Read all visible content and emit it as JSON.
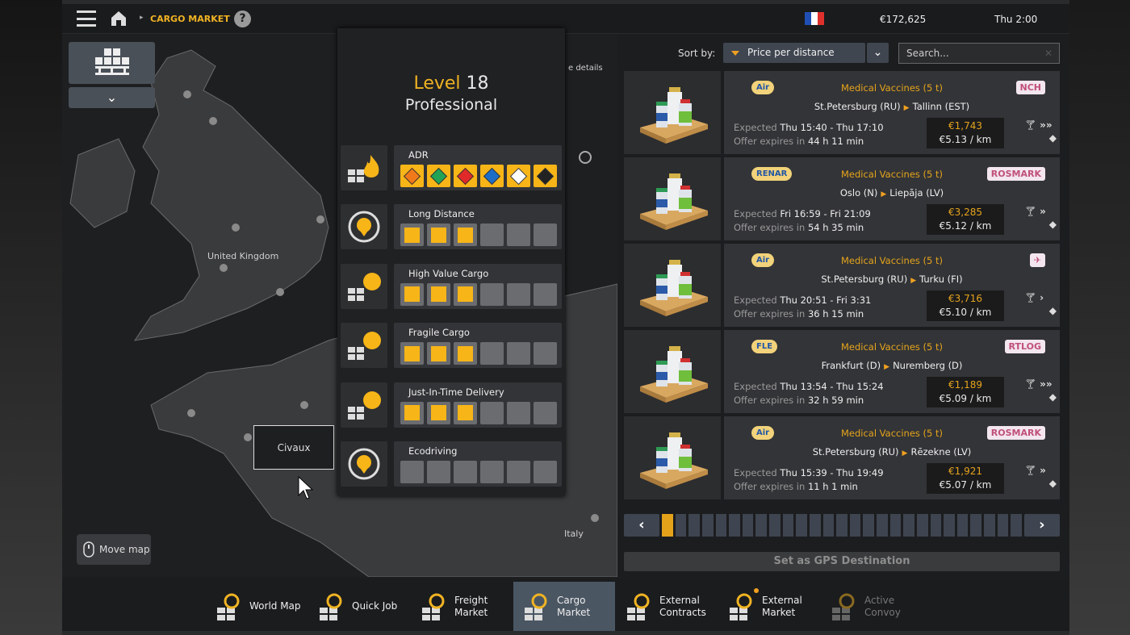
{
  "header": {
    "breadcrumb": "CARGO MARKET",
    "help": "?",
    "money": "€172,625",
    "time": "Thu 2:00",
    "country_flag": [
      "#1f4fb4",
      "#ffffff",
      "#e0302c"
    ]
  },
  "map": {
    "labels": {
      "uk": "United Kingdom",
      "italy": "Italy",
      "details": "e details"
    },
    "selected_city": "Civaux",
    "move_map": "Move map",
    "category_dropdown": "⌄"
  },
  "skills": {
    "level_word": "Level",
    "level": "18",
    "rank": "Professional",
    "adr": {
      "name": "ADR",
      "classes": [
        {
          "color": "#f07a1a"
        },
        {
          "color": "#22a356"
        },
        {
          "color": "#e02a2a"
        },
        {
          "color": "#1e6ec8"
        },
        {
          "color": "#ffffff"
        },
        {
          "color": "#222222"
        }
      ]
    },
    "items": [
      {
        "name": "Long Distance",
        "level": 3,
        "max": 6
      },
      {
        "name": "High Value Cargo",
        "level": 3,
        "max": 6
      },
      {
        "name": "Fragile Cargo",
        "level": 3,
        "max": 6
      },
      {
        "name": "Just-In-Time Delivery",
        "level": 3,
        "max": 6
      },
      {
        "name": "Ecodriving",
        "level": 0,
        "max": 6
      }
    ]
  },
  "sort": {
    "label": "Sort by:",
    "value": "Price per distance",
    "search_placeholder": "Search..."
  },
  "offers_labels": {
    "expected": "Expected",
    "expires": "Offer expires in"
  },
  "offers": [
    {
      "source_logo": "Air",
      "cargo": "Medical Vaccines (5 t)",
      "from": "St.Petersburg (RU)",
      "to": "Tallinn (EST)",
      "expected": "Thu 15:40 - Thu 17:10",
      "expires": "44 h 11 min",
      "price": "€1,743",
      "per_km": "€5.13 / km",
      "dest_logo": "NCH",
      "speed": "»»"
    },
    {
      "source_logo": "RENAR",
      "cargo": "Medical Vaccines (5 t)",
      "from": "Oslo (N)",
      "to": "Liepāja (LV)",
      "expected": "Fri 16:59 - Fri 21:09",
      "expires": "54 h 35 min",
      "price": "€3,285",
      "per_km": "€5.12 / km",
      "dest_logo": "ROSMARK",
      "speed": "»"
    },
    {
      "source_logo": "Air",
      "cargo": "Medical Vaccines (5 t)",
      "from": "St.Petersburg (RU)",
      "to": "Turku (FI)",
      "expected": "Thu 20:51 - Fri 3:31",
      "expires": "36 h 15 min",
      "price": "€3,716",
      "per_km": "€5.10 / km",
      "dest_logo": "✈",
      "speed": "›"
    },
    {
      "source_logo": "FLE",
      "cargo": "Medical Vaccines (5 t)",
      "from": "Frankfurt (D)",
      "to": "Nuremberg (D)",
      "expected": "Thu 13:54 - Thu 15:24",
      "expires": "32 h 59 min",
      "price": "€1,189",
      "per_km": "€5.09 / km",
      "dest_logo": "RTLOG",
      "speed": "»»"
    },
    {
      "source_logo": "Air",
      "cargo": "Medical Vaccines (5 t)",
      "from": "St.Petersburg (RU)",
      "to": "Rēzekne (LV)",
      "expected": "Thu 15:39 - Thu 19:49",
      "expires": "11 h 1 min",
      "price": "€1,921",
      "per_km": "€5.07 / km",
      "dest_logo": "ROSMARK",
      "speed": "»"
    }
  ],
  "pager": {
    "prev": "‹",
    "next": "›",
    "pages": 27,
    "current": 1
  },
  "gps_button": "Set as GPS Destination",
  "nav": [
    {
      "label1": "World Map",
      "label2": "",
      "icon": "world-map-icon"
    },
    {
      "label1": "Quick Job",
      "label2": "",
      "icon": "quick-job-icon"
    },
    {
      "label1": "Freight",
      "label2": "Market",
      "icon": "freight-market-icon"
    },
    {
      "label1": "Cargo",
      "label2": "Market",
      "icon": "cargo-market-icon",
      "active": true
    },
    {
      "label1": "External",
      "label2": "Contracts",
      "icon": "external-contracts-icon"
    },
    {
      "label1": "External",
      "label2": "Market",
      "icon": "external-market-icon",
      "badge": true
    },
    {
      "label1": "Active",
      "label2": "Convoy",
      "icon": "active-convoy-icon",
      "disabled": true
    }
  ],
  "colors": {
    "accent": "#f0b323",
    "panel": "#333437",
    "active_nav": "#4b5663"
  }
}
